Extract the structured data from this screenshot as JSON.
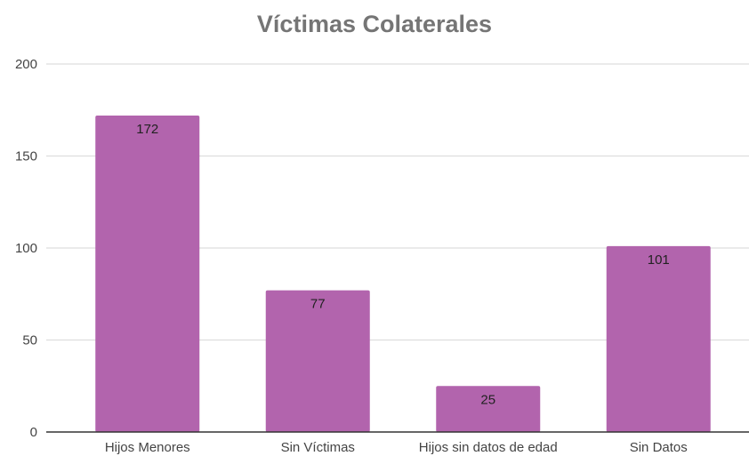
{
  "chart_data": {
    "type": "bar",
    "title": "Víctimas Colaterales",
    "categories": [
      "Hijos Menores",
      "Sin Víctimas",
      "Hijos sin datos de edad",
      "Sin Datos"
    ],
    "values": [
      172,
      77,
      25,
      101
    ],
    "data_labels": [
      "172",
      "77",
      "25",
      "101"
    ],
    "y_ticks": [
      "0",
      "50",
      "100",
      "150",
      "200"
    ],
    "ylim": [
      0,
      200
    ],
    "xlabel": "",
    "ylabel": "",
    "grid": true,
    "legend": "none",
    "bar_color": "#b264ad",
    "gridline_color": "#dddddd",
    "axis_color": "#333333",
    "title_color": "#757575",
    "tick_label_color": "#444444"
  }
}
